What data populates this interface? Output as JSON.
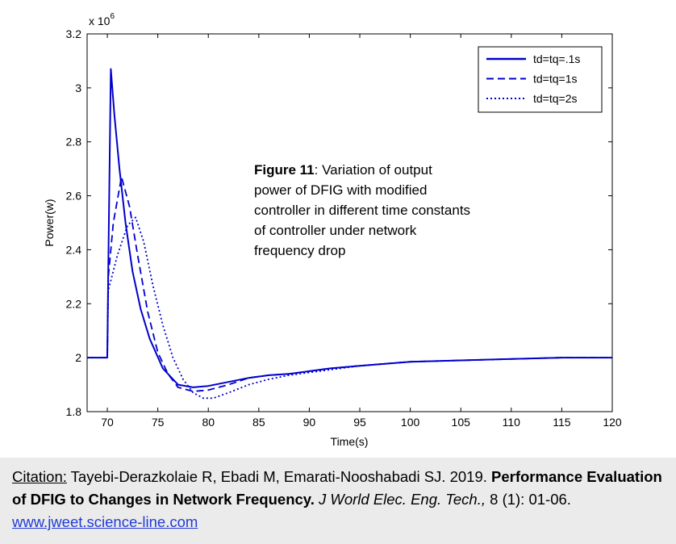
{
  "chart_data": {
    "type": "line",
    "xlabel": "Time(s)",
    "ylabel": "Power(w)",
    "y_multiplier": "x 10",
    "y_multiplier_exp": "6",
    "xlim": [
      68,
      120
    ],
    "ylim": [
      1.8,
      3.2
    ],
    "xticks": [
      "70",
      "75",
      "80",
      "85",
      "90",
      "95",
      "100",
      "105",
      "110",
      "115",
      "120"
    ],
    "yticks": [
      "1.8",
      "2",
      "2.2",
      "2.4",
      "2.6",
      "2.8",
      "3",
      "3.2"
    ],
    "grid": false,
    "legend_position": "top-right",
    "line_color": "#0000cc",
    "series": [
      {
        "name": "td=tq=.1s",
        "style": "solid",
        "x": [
          68,
          70,
          70.1,
          70.35,
          70.7,
          71.2,
          71.8,
          72.5,
          73.3,
          74.2,
          75.5,
          77,
          78.5,
          80,
          82,
          84,
          86,
          88,
          90,
          92,
          95,
          100,
          105,
          110,
          115,
          120
        ],
        "y": [
          2.0,
          2.0,
          2.35,
          3.07,
          2.9,
          2.7,
          2.5,
          2.32,
          2.18,
          2.07,
          1.96,
          1.9,
          1.89,
          1.895,
          1.91,
          1.925,
          1.935,
          1.94,
          1.95,
          1.96,
          1.97,
          1.985,
          1.99,
          1.995,
          2.0,
          2.0
        ]
      },
      {
        "name": "td=tq=1s",
        "style": "dashed",
        "x": [
          68,
          70,
          70.1,
          70.6,
          71.4,
          72.2,
          73,
          74,
          75,
          76,
          77,
          78.5,
          80,
          82,
          84,
          86,
          88,
          90,
          92,
          95,
          100,
          105,
          110,
          115,
          120
        ],
        "y": [
          2.0,
          2.0,
          2.3,
          2.5,
          2.67,
          2.56,
          2.38,
          2.17,
          2.02,
          1.94,
          1.89,
          1.875,
          1.88,
          1.9,
          1.925,
          1.935,
          1.94,
          1.95,
          1.96,
          1.97,
          1.985,
          1.99,
          1.995,
          2.0,
          2.0
        ]
      },
      {
        "name": "td=tq=2s",
        "style": "dotted",
        "x": [
          68,
          70,
          70.1,
          71,
          72,
          72.8,
          73.6,
          74.5,
          75.5,
          76.5,
          77.5,
          78.5,
          79.5,
          80.5,
          82,
          84,
          86,
          88,
          90,
          92,
          95,
          100,
          105,
          110,
          115,
          120
        ],
        "y": [
          2.0,
          2.0,
          2.25,
          2.38,
          2.49,
          2.52,
          2.43,
          2.27,
          2.12,
          2.0,
          1.92,
          1.87,
          1.85,
          1.85,
          1.87,
          1.9,
          1.92,
          1.935,
          1.945,
          1.955,
          1.97,
          1.985,
          1.99,
          1.995,
          2.0,
          2.0
        ]
      }
    ]
  },
  "annotation": {
    "bold_label": "Figure 11",
    "text": ": Variation of output power of DFIG with modified controller in different time constants of controller under network frequency drop"
  },
  "citation": {
    "label": "Citation:",
    "authors": " Tayebi-Derazkolaie R, Ebadi M, Emarati-Nooshabadi SJ. 2019. ",
    "title": "Performance Evaluation of DFIG to Changes in Network Frequency.",
    "journal": " J World Elec. Eng. Tech.,",
    "volume": " 8 (1): 01-06. ",
    "link": "www.jweet.science-line.com"
  }
}
